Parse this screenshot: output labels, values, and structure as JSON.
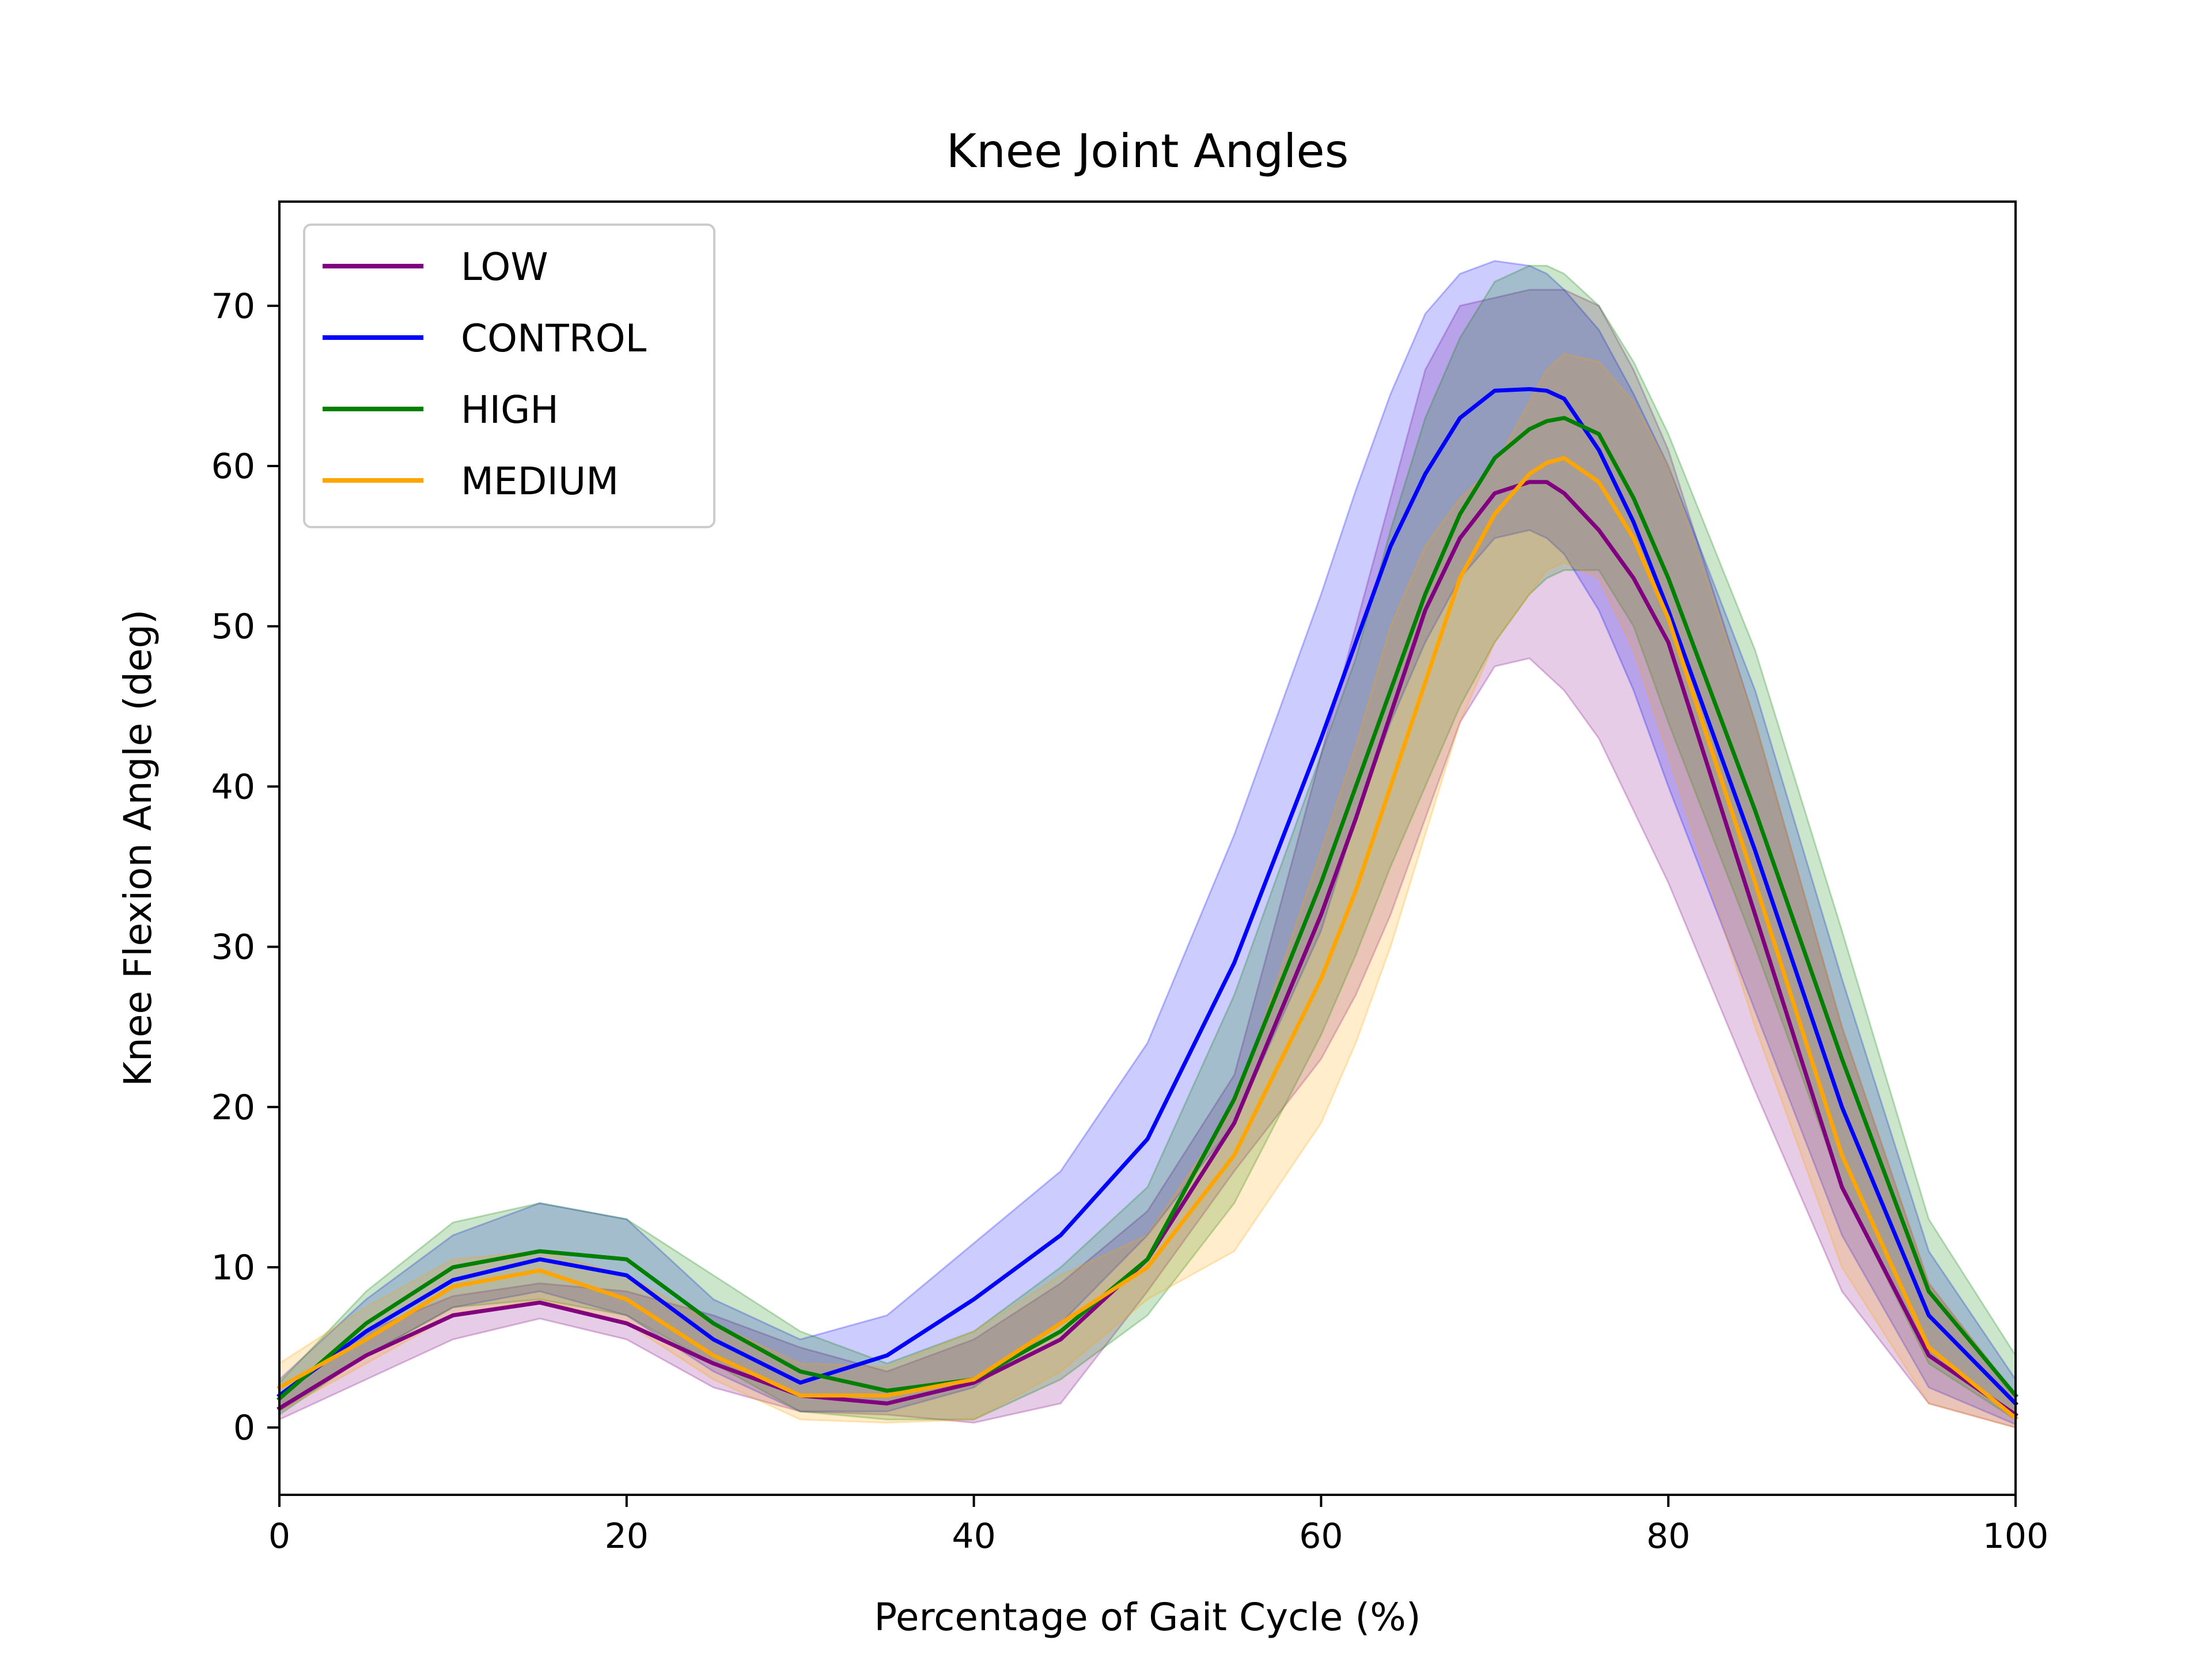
{
  "chart_data": {
    "type": "line",
    "title": "Knee Joint Angles",
    "xlabel": "Percentage of Gait Cycle (%)",
    "ylabel": "Knee Flexion Angle (deg)",
    "xlim": [
      0,
      100
    ],
    "ylim": [
      -4.2,
      76.5
    ],
    "xticks": [
      "0",
      "20",
      "40",
      "60",
      "80",
      "100"
    ],
    "yticks": [
      "0",
      "10",
      "20",
      "30",
      "40",
      "50",
      "60",
      "70"
    ],
    "grid": false,
    "legend_position": "upper-left",
    "x": [
      0,
      5,
      10,
      15,
      20,
      25,
      30,
      35,
      40,
      45,
      50,
      55,
      60,
      62,
      64,
      66,
      68,
      70,
      72,
      73,
      74,
      76,
      78,
      80,
      85,
      90,
      95,
      100
    ],
    "series": [
      {
        "name": "LOW",
        "color": "#800080",
        "values": [
          1.2,
          4.5,
          7.0,
          7.8,
          6.5,
          4.0,
          2.0,
          1.5,
          2.8,
          5.5,
          10.5,
          19.0,
          32.0,
          38.0,
          44.5,
          51.0,
          55.5,
          58.3,
          59.0,
          59.0,
          58.3,
          56.0,
          53.0,
          49.0,
          32.0,
          15.0,
          4.5,
          0.8
        ],
        "upper": [
          2.0,
          6.0,
          8.2,
          9.0,
          8.5,
          7.0,
          5.0,
          3.5,
          5.5,
          9.0,
          13.5,
          22.0,
          42.0,
          50.0,
          58.0,
          66.0,
          70.0,
          70.5,
          71.0,
          71.0,
          71.0,
          70.0,
          66.0,
          61.0,
          44.0,
          25.0,
          9.0,
          2.0
        ],
        "lower": [
          0.5,
          3.0,
          5.5,
          6.8,
          5.5,
          2.5,
          1.0,
          0.8,
          0.3,
          1.5,
          8.5,
          16.0,
          23.0,
          27.0,
          32.0,
          38.0,
          44.0,
          47.5,
          48.0,
          47.0,
          46.0,
          43.0,
          38.5,
          34.0,
          21.0,
          8.5,
          1.5,
          0.0
        ]
      },
      {
        "name": "CONTROL",
        "color": "#0000ff",
        "values": [
          2.0,
          6.0,
          9.2,
          10.5,
          9.5,
          5.5,
          2.8,
          4.5,
          8.0,
          12.0,
          18.0,
          29.0,
          43.0,
          49.0,
          55.0,
          59.5,
          63.0,
          64.7,
          64.8,
          64.7,
          64.2,
          61.0,
          56.5,
          51.0,
          36.0,
          20.0,
          7.0,
          1.5
        ],
        "upper": [
          3.0,
          8.0,
          12.0,
          14.0,
          13.0,
          8.0,
          5.5,
          7.0,
          11.5,
          16.0,
          24.0,
          37.0,
          52.0,
          58.5,
          64.5,
          69.5,
          72.0,
          72.8,
          72.5,
          72.0,
          71.0,
          68.5,
          64.5,
          60.0,
          46.0,
          28.0,
          11.0,
          3.0
        ],
        "lower": [
          1.0,
          4.5,
          7.5,
          8.5,
          7.0,
          3.5,
          1.0,
          1.0,
          2.5,
          6.5,
          12.0,
          19.0,
          31.0,
          38.0,
          44.0,
          49.0,
          53.0,
          55.5,
          56.0,
          55.5,
          54.5,
          51.0,
          46.0,
          40.0,
          26.0,
          12.0,
          2.5,
          0.2
        ]
      },
      {
        "name": "HIGH",
        "color": "#008000",
        "values": [
          1.8,
          6.5,
          10.0,
          11.0,
          10.5,
          6.5,
          3.5,
          2.3,
          3.0,
          6.0,
          10.5,
          20.5,
          34.0,
          40.0,
          46.0,
          52.0,
          57.0,
          60.5,
          62.3,
          62.8,
          63.0,
          62.0,
          58.0,
          53.0,
          38.5,
          23.0,
          8.5,
          2.0
        ],
        "upper": [
          2.8,
          8.5,
          12.8,
          14.0,
          13.0,
          9.5,
          6.0,
          4.0,
          6.0,
          10.0,
          15.0,
          27.0,
          42.0,
          48.0,
          56.0,
          63.0,
          68.0,
          71.5,
          72.5,
          72.5,
          72.0,
          70.0,
          66.5,
          62.0,
          48.5,
          31.0,
          13.0,
          4.5
        ],
        "lower": [
          0.8,
          4.5,
          7.5,
          8.0,
          7.0,
          4.0,
          1.0,
          0.5,
          0.5,
          3.0,
          7.0,
          14.0,
          24.5,
          29.5,
          35.0,
          40.0,
          45.0,
          49.0,
          52.0,
          53.0,
          53.5,
          53.5,
          50.0,
          44.0,
          30.0,
          15.0,
          4.0,
          0.5
        ]
      },
      {
        "name": "MEDIUM",
        "color": "#ffa500",
        "values": [
          2.5,
          5.5,
          8.8,
          9.8,
          8.0,
          4.5,
          2.0,
          2.0,
          3.0,
          6.5,
          10.0,
          17.0,
          28.0,
          33.5,
          40.0,
          46.5,
          53.0,
          57.0,
          59.5,
          60.2,
          60.5,
          59.0,
          55.5,
          50.5,
          34.0,
          17.0,
          5.0,
          0.6
        ],
        "upper": [
          4.0,
          7.5,
          10.5,
          11.0,
          9.5,
          6.5,
          4.0,
          3.8,
          6.0,
          9.5,
          12.0,
          20.0,
          36.0,
          42.5,
          50.0,
          55.0,
          58.0,
          60.0,
          64.0,
          66.0,
          67.0,
          66.5,
          64.0,
          60.0,
          44.0,
          25.0,
          9.0,
          2.0
        ],
        "lower": [
          1.0,
          4.0,
          7.0,
          8.0,
          6.5,
          3.0,
          0.5,
          0.3,
          0.5,
          3.5,
          8.0,
          11.0,
          19.0,
          24.0,
          30.0,
          37.0,
          44.0,
          49.0,
          52.0,
          53.5,
          54.0,
          53.0,
          48.5,
          42.0,
          25.0,
          10.0,
          1.5,
          0.0
        ]
      }
    ]
  }
}
